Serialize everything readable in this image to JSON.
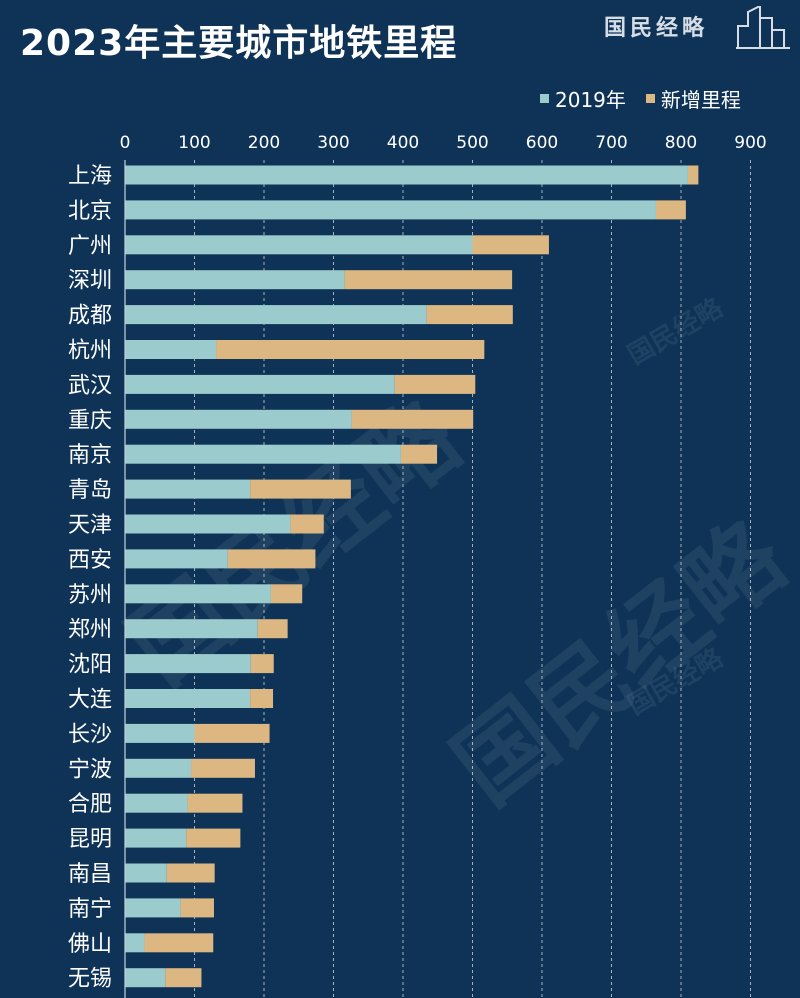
{
  "header": {
    "title": "2023年主要城市地铁里程",
    "logo_text": "国民经略"
  },
  "colors": {
    "background": "#0e3357",
    "base_series": "#9ccbcd",
    "added_series": "#ddb781",
    "grid": "#c8d2dc",
    "text": "#ffffff"
  },
  "chart_data": {
    "type": "bar",
    "orientation": "horizontal",
    "stacked": true,
    "categories": [
      "上海",
      "北京",
      "广州",
      "深圳",
      "成都",
      "杭州",
      "武汉",
      "重庆",
      "南京",
      "青岛",
      "天津",
      "西安",
      "苏州",
      "郑州",
      "沈阳",
      "大连",
      "长沙",
      "宁波",
      "合肥",
      "昆明",
      "南昌",
      "南宁",
      "佛山",
      "无锡"
    ],
    "series": [
      {
        "name": "2019年",
        "values": [
          810,
          764,
          500,
          316,
          434,
          131,
          388,
          326,
          397,
          180,
          238,
          148,
          210,
          191,
          181,
          180,
          100,
          95,
          90,
          88,
          60,
          80,
          28,
          58
        ]
      },
      {
        "name": "新增里程",
        "values": [
          15,
          43,
          110,
          241,
          124,
          386,
          116,
          175,
          52,
          145,
          48,
          126,
          45,
          43,
          33,
          33,
          108,
          92,
          79,
          78,
          69,
          48,
          99,
          52
        ]
      }
    ],
    "xlim": [
      0,
      900
    ],
    "xticks": [
      0,
      100,
      200,
      300,
      400,
      500,
      600,
      700,
      800,
      900
    ],
    "grid": true,
    "legend_position": "top-right"
  }
}
